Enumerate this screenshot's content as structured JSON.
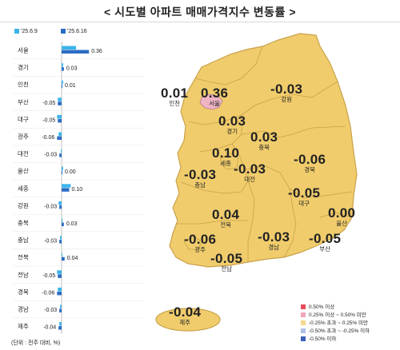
{
  "title": "< 시도별 아파트 매매가격지수 변동률 >",
  "unit_note": "(단위 : 전주 대비, %)",
  "chart_data": {
    "type": "bar",
    "orientation": "horizontal",
    "categories": [
      "서울",
      "경기",
      "인천",
      "부산",
      "대구",
      "광주",
      "대전",
      "울산",
      "세종",
      "강원",
      "충북",
      "충남",
      "전북",
      "전남",
      "경북",
      "경남",
      "제주"
    ],
    "series": [
      {
        "name": "'25.6.9",
        "color": "#3cb4ea",
        "values": [
          0.19,
          0.02,
          0.02,
          -0.05,
          -0.06,
          -0.04,
          -0.01,
          0.02,
          0.12,
          -0.04,
          0.0,
          -0.02,
          0.0,
          -0.06,
          -0.05,
          -0.02,
          -0.03
        ]
      },
      {
        "name": "'25.6.16",
        "color": "#2b6cc4",
        "values": [
          0.36,
          0.03,
          0.01,
          -0.05,
          -0.05,
          -0.06,
          -0.03,
          0.0,
          0.1,
          -0.03,
          0.03,
          -0.03,
          0.04,
          -0.05,
          -0.06,
          -0.03,
          -0.04
        ]
      }
    ],
    "data_labels": [
      "0.36",
      "0.03",
      "0.01",
      "-0.05",
      "-0.05",
      "-0.06",
      "-0.03",
      "0.00",
      "0.10",
      "-0.03",
      "0.03",
      "-0.03",
      "0.04",
      "-0.05",
      "-0.06",
      "-0.03",
      "-0.04"
    ]
  },
  "map": {
    "regions": [
      {
        "name": "인천",
        "value": "0.01"
      },
      {
        "name": "서울",
        "value": "0.36"
      },
      {
        "name": "경기",
        "value": "0.03"
      },
      {
        "name": "강원",
        "value": "-0.03"
      },
      {
        "name": "충북",
        "value": "0.03"
      },
      {
        "name": "세종",
        "value": "0.10"
      },
      {
        "name": "충남",
        "value": "-0.03"
      },
      {
        "name": "대전",
        "value": "-0.03"
      },
      {
        "name": "경북",
        "value": "-0.06"
      },
      {
        "name": "대구",
        "value": "-0.05"
      },
      {
        "name": "울산",
        "value": "0.00"
      },
      {
        "name": "전북",
        "value": "0.04"
      },
      {
        "name": "광주",
        "value": "-0.06"
      },
      {
        "name": "경남",
        "value": "-0.03"
      },
      {
        "name": "부산",
        "value": "-0.05"
      },
      {
        "name": "전남",
        "value": "-0.05"
      },
      {
        "name": "제주",
        "value": "-0.04"
      }
    ],
    "legend": [
      {
        "label": "0.50% 이상",
        "color": "#e84c5a"
      },
      {
        "label": "0.25% 이상 ~ 0.50% 미만",
        "color": "#f2a6b8"
      },
      {
        "label": "-0.25% 초과 ~ 0.25% 미만",
        "color": "#f5d98a"
      },
      {
        "label": "-0.50% 초과 ~ -0.25% 이하",
        "color": "#aebfe8"
      },
      {
        "label": "-0.50% 이하",
        "color": "#3b5fb8"
      }
    ],
    "colors": {
      "land": "#f0cc6c",
      "land_stroke": "#c9a24a",
      "seoul": "#eeb4c4"
    }
  }
}
